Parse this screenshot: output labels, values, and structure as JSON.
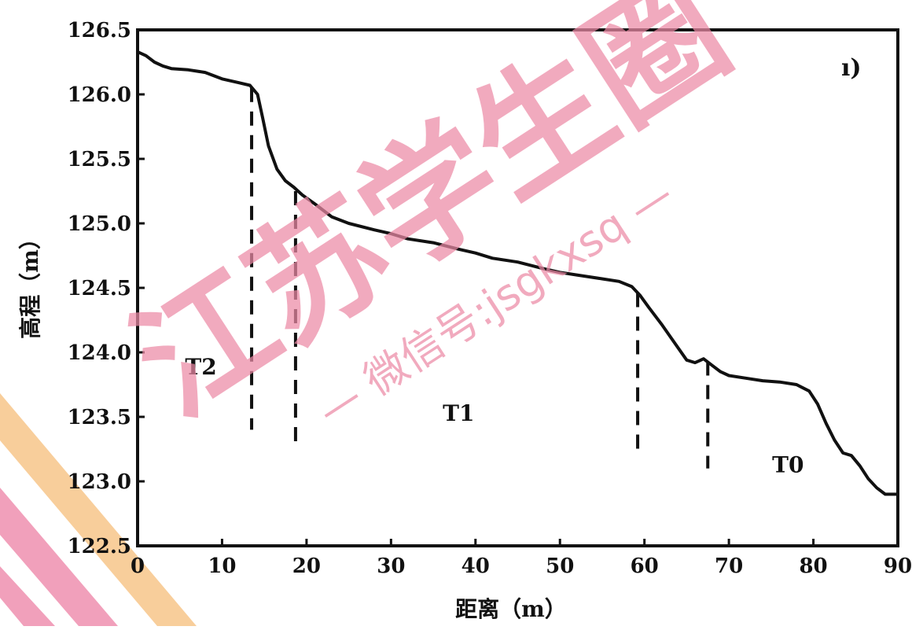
{
  "chart_data": {
    "type": "line",
    "title": "",
    "panel_label": "ı)",
    "xlabel": "距离（m）",
    "ylabel": "高程（m）",
    "xlim": [
      0,
      90
    ],
    "ylim": [
      122.5,
      126.5
    ],
    "x_ticks": [
      "0",
      "10",
      "20",
      "30",
      "40",
      "50",
      "60",
      "70",
      "80",
      "90"
    ],
    "y_ticks": [
      "122.5",
      "123.0",
      "123.5",
      "124.0",
      "124.5",
      "125.0",
      "125.5",
      "126.0",
      "126.5"
    ],
    "grid": false,
    "series": [
      {
        "points": [
          [
            0,
            126.33
          ],
          [
            1,
            126.3
          ],
          [
            2,
            126.25
          ],
          [
            3,
            126.22
          ],
          [
            4,
            126.2
          ],
          [
            6,
            126.19
          ],
          [
            8,
            126.17
          ],
          [
            10,
            126.12
          ],
          [
            12,
            126.09
          ],
          [
            13.3,
            126.07
          ],
          [
            14.2,
            126.0
          ],
          [
            14.8,
            125.82
          ],
          [
            15.5,
            125.6
          ],
          [
            16.5,
            125.42
          ],
          [
            17.5,
            125.33
          ],
          [
            18.5,
            125.28
          ],
          [
            19.5,
            125.22
          ],
          [
            21,
            125.15
          ],
          [
            22,
            125.1
          ],
          [
            23,
            125.05
          ],
          [
            25,
            125.0
          ],
          [
            28,
            124.95
          ],
          [
            30,
            124.92
          ],
          [
            32,
            124.88
          ],
          [
            35,
            124.85
          ],
          [
            38,
            124.8
          ],
          [
            40,
            124.77
          ],
          [
            42,
            124.73
          ],
          [
            45,
            124.7
          ],
          [
            48,
            124.65
          ],
          [
            50,
            124.62
          ],
          [
            52,
            124.6
          ],
          [
            55,
            124.57
          ],
          [
            57,
            124.55
          ],
          [
            58.5,
            124.51
          ],
          [
            59.5,
            124.44
          ],
          [
            60.5,
            124.35
          ],
          [
            62,
            124.22
          ],
          [
            63.5,
            124.08
          ],
          [
            65,
            123.94
          ],
          [
            66,
            123.92
          ],
          [
            67,
            123.95
          ],
          [
            68,
            123.9
          ],
          [
            69,
            123.85
          ],
          [
            70,
            123.82
          ],
          [
            72,
            123.8
          ],
          [
            74,
            123.78
          ],
          [
            76,
            123.77
          ],
          [
            78,
            123.75
          ],
          [
            79.5,
            123.7
          ],
          [
            80.5,
            123.6
          ],
          [
            81.5,
            123.45
          ],
          [
            82.5,
            123.32
          ],
          [
            83.5,
            123.22
          ],
          [
            84.5,
            123.2
          ],
          [
            85.5,
            123.12
          ],
          [
            86.5,
            123.02
          ],
          [
            87.5,
            122.95
          ],
          [
            88.5,
            122.9
          ],
          [
            90,
            122.9
          ]
        ]
      }
    ],
    "annotations": {
      "dashed_lines": [
        {
          "x": 13.5,
          "y_top": 126.05,
          "y_bottom": 123.4
        },
        {
          "x": 18.7,
          "y_top": 125.25,
          "y_bottom": 123.3
        },
        {
          "x": 59.2,
          "y_top": 124.46,
          "y_bottom": 123.25
        },
        {
          "x": 67.5,
          "y_top": 123.93,
          "y_bottom": 123.1
        }
      ],
      "terraces": [
        {
          "label": "T2",
          "x": 7.5,
          "y": 123.83
        },
        {
          "label": "T1",
          "x": 38,
          "y": 123.47
        },
        {
          "label": "T0",
          "x": 77,
          "y": 123.07
        }
      ]
    }
  },
  "watermark": {
    "main": "江苏学生圈",
    "sub": "— 微信号:jsgkxsq —",
    "color": "#ec8aa6",
    "corner_orange": "#f7c58a",
    "corner_pink": "#ee88aa"
  }
}
